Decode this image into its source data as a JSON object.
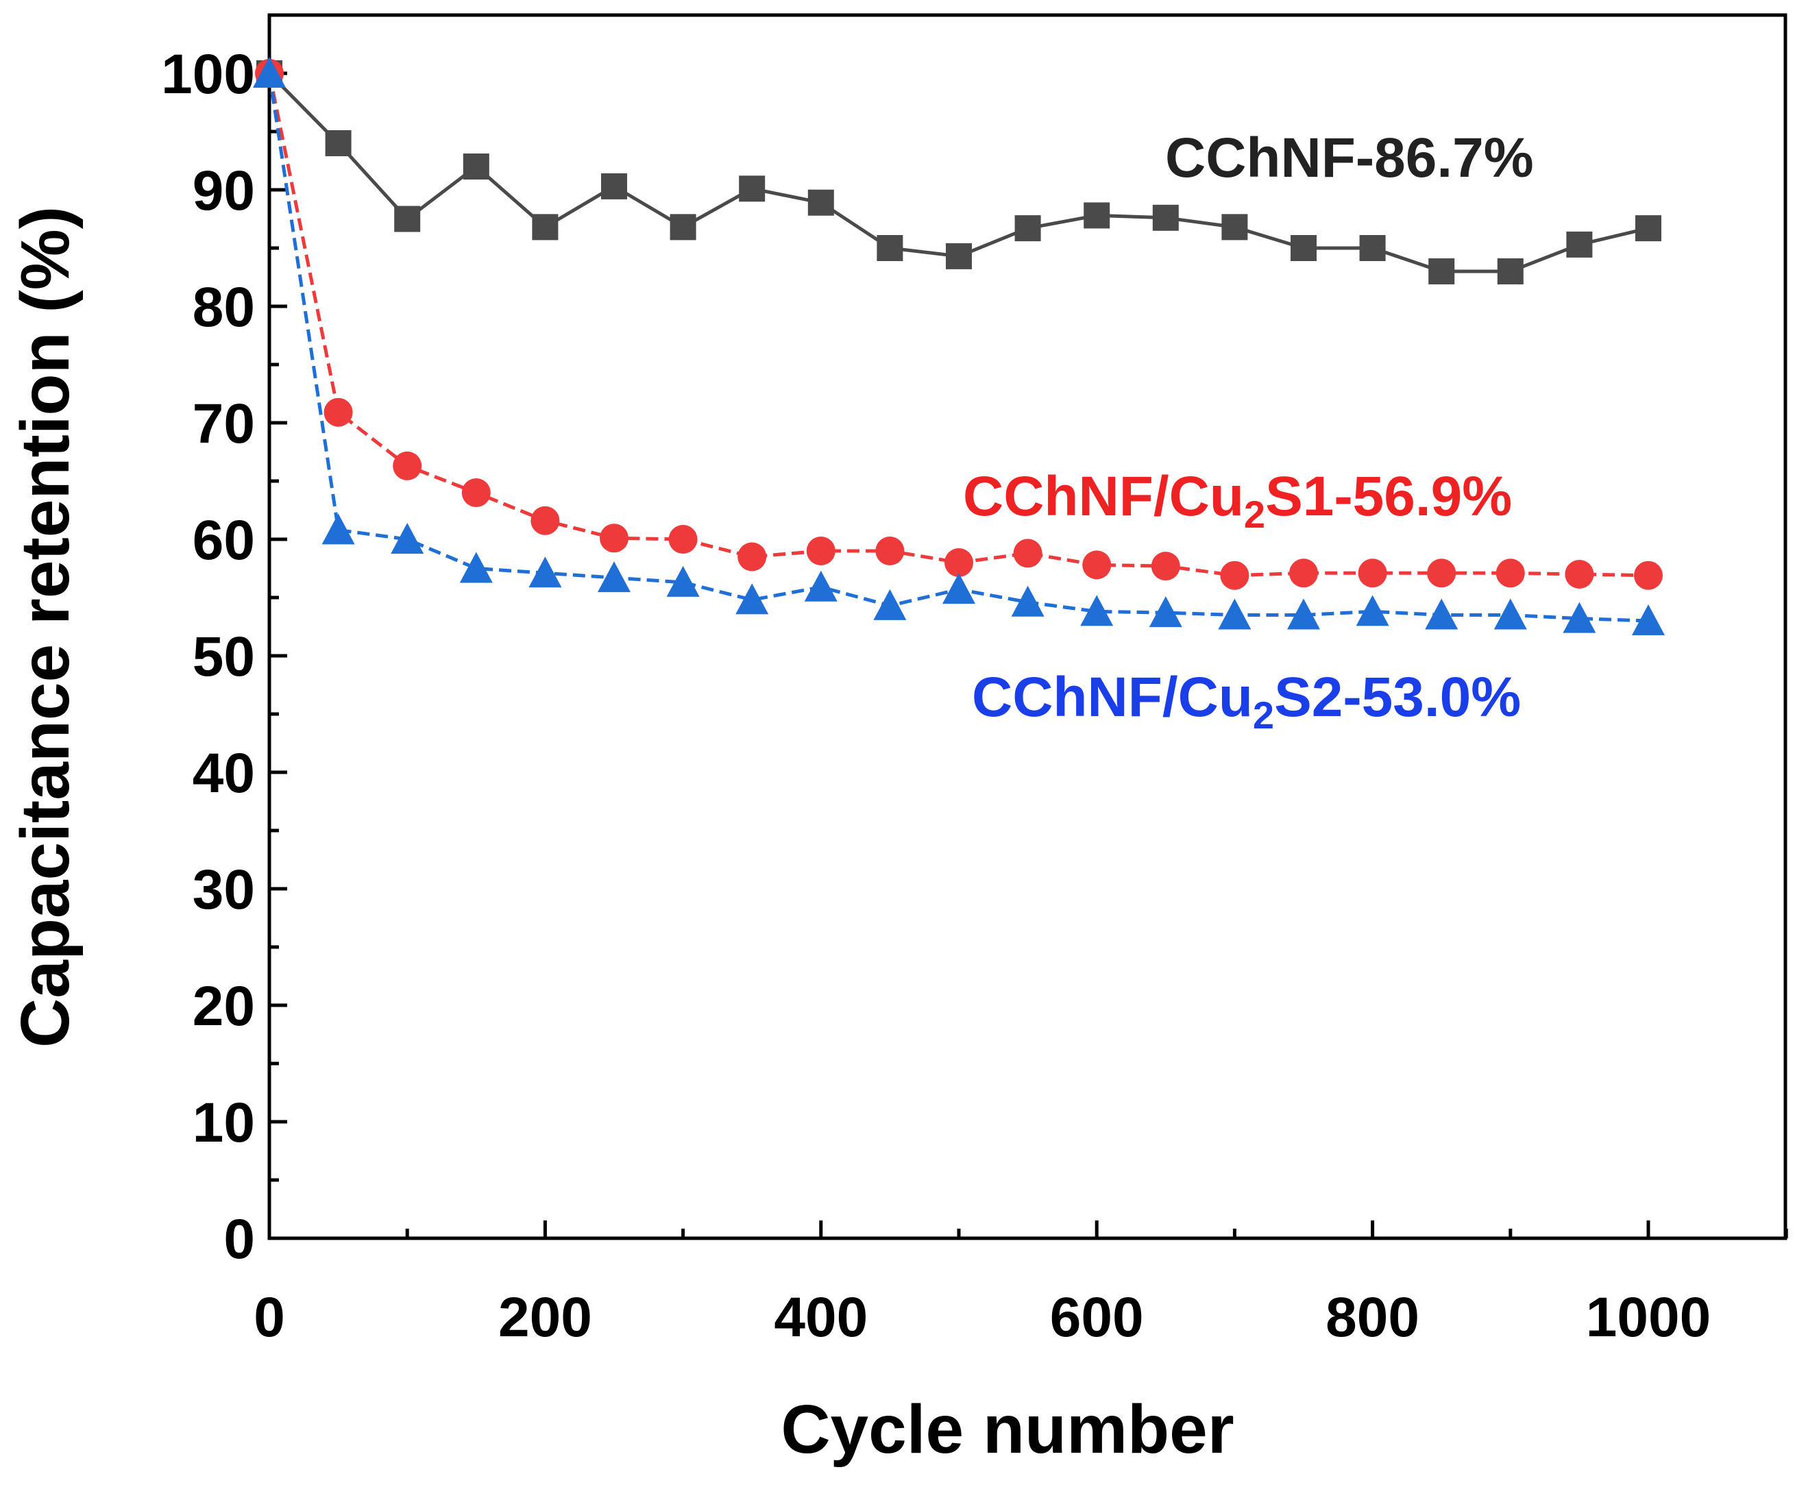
{
  "chart_data": {
    "type": "line",
    "title": "",
    "xlabel": "Cycle number",
    "ylabel": "Capacitance retention (%)",
    "xlim": [
      0,
      1100
    ],
    "ylim": [
      0,
      100
    ],
    "xticks": [
      0,
      200,
      400,
      600,
      800,
      1000
    ],
    "yticks": [
      0,
      10,
      20,
      30,
      40,
      50,
      60,
      70,
      80,
      90,
      100
    ],
    "x": [
      0,
      50,
      100,
      150,
      200,
      250,
      300,
      350,
      400,
      450,
      500,
      550,
      600,
      650,
      700,
      750,
      800,
      850,
      900,
      950,
      1000
    ],
    "series": [
      {
        "name": "CChNF",
        "color": "#4a4a4a",
        "marker": "square",
        "line": "solid",
        "values": [
          100,
          94.0,
          87.5,
          92.0,
          86.8,
          90.3,
          86.8,
          90.1,
          88.9,
          85.0,
          84.3,
          86.7,
          87.8,
          87.6,
          86.8,
          85.0,
          85.0,
          83.0,
          83.0,
          85.3,
          86.7
        ]
      },
      {
        "name": "CChNF/Cu2S1",
        "color": "#ee3a3a",
        "marker": "circle",
        "line": "dashed",
        "values": [
          100,
          70.9,
          66.3,
          64.0,
          61.6,
          60.1,
          60.0,
          58.5,
          59.0,
          59.0,
          58.0,
          58.8,
          57.8,
          57.7,
          56.9,
          57.1,
          57.1,
          57.1,
          57.1,
          57.0,
          56.9
        ]
      },
      {
        "name": "CChNF/Cu2S2",
        "color": "#1f6fd6",
        "marker": "triangle",
        "line": "dashed",
        "values": [
          100,
          60.8,
          60.0,
          57.5,
          57.1,
          56.7,
          56.3,
          54.8,
          55.9,
          54.3,
          55.7,
          54.6,
          53.8,
          53.7,
          53.5,
          53.5,
          53.8,
          53.5,
          53.5,
          53.2,
          53.0
        ]
      }
    ],
    "annotations": [
      {
        "series": 0,
        "prefix": "CChNF-86.7%",
        "sub": "",
        "suffix": "",
        "color": "#222222"
      },
      {
        "series": 1,
        "prefix": "CChNF/Cu",
        "sub": "2",
        "suffix": "S1-56.9%",
        "color": "#ee2222"
      },
      {
        "series": 2,
        "prefix": "CChNF/Cu",
        "sub": "2",
        "suffix": "S2-53.0%",
        "color": "#1a3ee8"
      }
    ]
  }
}
